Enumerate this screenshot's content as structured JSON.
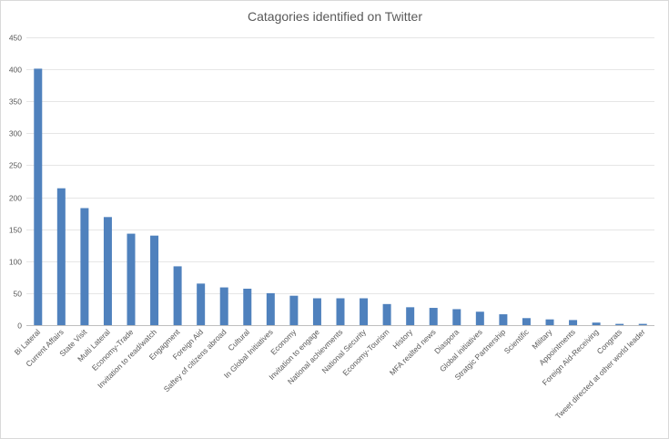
{
  "chart_data": {
    "type": "bar",
    "title": "Catagories identified on Twitter",
    "xlabel": "",
    "ylabel": "",
    "ylim": [
      0,
      450
    ],
    "yticks": [
      0,
      50,
      100,
      150,
      200,
      250,
      300,
      350,
      400,
      450
    ],
    "grid": true,
    "legend": "none",
    "bar_color": "#4F81BD",
    "categories": [
      "Bi Lateral",
      "Current Affairs",
      "State Visit",
      "Multi Lateral",
      "Economy-Trade",
      "Invitation to read/watch",
      "Engagment",
      "Foreign Aid",
      "Saftey of citizens abroad",
      "Cultural",
      "In Global Initiatives",
      "Economy",
      "Invitation to engage",
      "National achievments",
      "National Security",
      "Economy-Tourism",
      "History",
      "MFA realted news",
      "Diaspora",
      "Global initiatives",
      "Stratgic Partnership",
      "Scientific",
      "Military",
      "Appointments",
      "Foreign Aid-Receiving",
      "Congrats",
      "Tweet directed at other world leader"
    ],
    "values": [
      401,
      214,
      183,
      169,
      143,
      140,
      92,
      65,
      59,
      57,
      50,
      46,
      42,
      42,
      42,
      33,
      28,
      27,
      25,
      21,
      17,
      11,
      9,
      8,
      4,
      2,
      2
    ]
  }
}
